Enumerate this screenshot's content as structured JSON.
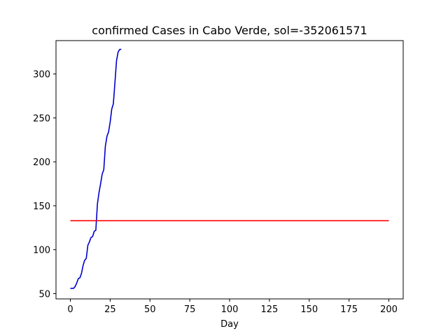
{
  "chart_data": {
    "type": "line",
    "title": "confirmed Cases in Cabo Verde, sol=-352061571",
    "xlabel": "Day",
    "ylabel": "",
    "xlim": [
      -9,
      209
    ],
    "ylim": [
      44,
      338
    ],
    "xticks": [
      0,
      25,
      50,
      75,
      100,
      125,
      150,
      175,
      200
    ],
    "yticks": [
      50,
      100,
      150,
      200,
      250,
      300
    ],
    "grid": false,
    "series": [
      {
        "color": "#0000cc",
        "x": [
          0,
          1,
          2,
          3,
          4,
          5,
          6,
          7,
          8,
          9,
          10,
          11,
          12,
          13,
          14,
          15,
          16,
          17,
          18,
          19,
          20,
          21,
          22,
          23,
          24,
          25,
          26,
          27,
          28,
          29,
          30,
          31,
          32
        ],
        "y": [
          56,
          56,
          56,
          58,
          62,
          67,
          68,
          73,
          82,
          88,
          90,
          105,
          109,
          114,
          115,
          121,
          122,
          152,
          165,
          175,
          186,
          191,
          218,
          229,
          234,
          245,
          260,
          266,
          290,
          315,
          325,
          328,
          328
        ]
      },
      {
        "color": "#ff0000",
        "x": [
          0,
          200
        ],
        "y": [
          133,
          133
        ]
      }
    ]
  }
}
